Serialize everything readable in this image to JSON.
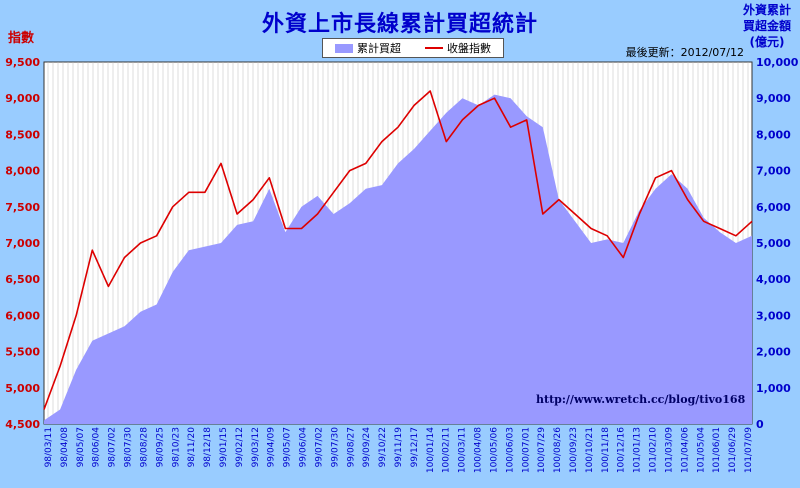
{
  "title": "外資上市長線累計買超統計",
  "left_axis_unit": "指數",
  "right_axis_unit_lines": [
    "外資累計",
    "買超金額",
    "(億元)"
  ],
  "updated_text": "最後更新：2012/07/12",
  "watermark_url": "http://www.wretch.cc/blog/tivo168",
  "colors": {
    "background": "#99CCFF",
    "plot_bg": "#FFFFFF",
    "area": "#9999FF",
    "line": "#DD0000",
    "left_axis": "#CC0000",
    "right_axis": "#0000CC"
  },
  "chart_data": {
    "type": "area+line",
    "legend": [
      "累計買超",
      "收盤指數"
    ],
    "yleft": {
      "label": "指數",
      "lim": [
        4500,
        9500
      ],
      "ticks": [
        "4,500",
        "5,000",
        "5,500",
        "6,000",
        "6,500",
        "7,000",
        "7,500",
        "8,000",
        "8,500",
        "9,000",
        "9,500"
      ]
    },
    "yright": {
      "label": "外資累計買超金額(億元)",
      "lim": [
        0,
        10000
      ],
      "ticks": [
        "0",
        "1,000",
        "2,000",
        "3,000",
        "4,000",
        "5,000",
        "6,000",
        "7,000",
        "8,000",
        "9,000",
        "10,000"
      ]
    },
    "x_tick_labels": [
      "98/03/11",
      "98/04/08",
      "98/05/07",
      "98/06/04",
      "98/07/02",
      "98/07/30",
      "98/08/28",
      "98/09/25",
      "98/10/23",
      "98/11/20",
      "98/12/18",
      "99/01/15",
      "99/02/12",
      "99/03/12",
      "99/04/09",
      "99/05/07",
      "99/06/04",
      "99/07/02",
      "99/07/30",
      "99/08/27",
      "99/09/24",
      "99/10/22",
      "99/11/19",
      "99/12/17",
      "100/01/14",
      "100/02/11",
      "100/03/11",
      "100/04/08",
      "100/05/06",
      "100/06/03",
      "100/07/01",
      "100/07/29",
      "100/08/26",
      "100/09/23",
      "100/10/21",
      "100/11/18",
      "100/12/16",
      "101/01/13",
      "101/02/10",
      "101/03/09",
      "101/04/06",
      "101/05/04",
      "101/06/01",
      "101/06/29",
      "101/07/09"
    ],
    "series": [
      {
        "name": "累計買超",
        "axis": "right",
        "values": [
          100,
          400,
          1500,
          2300,
          2500,
          2700,
          3100,
          3300,
          4200,
          4800,
          4900,
          5000,
          5500,
          5600,
          6500,
          5300,
          6000,
          6300,
          5800,
          6100,
          6500,
          6600,
          7200,
          7600,
          8100,
          8600,
          9000,
          8800,
          9100,
          9000,
          8500,
          8200,
          6200,
          5600,
          5000,
          5100,
          5000,
          5900,
          6500,
          6900,
          6500,
          5700,
          5300,
          5000,
          5200
        ]
      },
      {
        "name": "收盤指數",
        "axis": "left",
        "values": [
          4700,
          5300,
          6000,
          6900,
          6400,
          6800,
          7000,
          7100,
          7500,
          7700,
          7700,
          8100,
          7400,
          7600,
          7900,
          7200,
          7200,
          7400,
          7700,
          8000,
          8100,
          8400,
          8600,
          8900,
          9100,
          8400,
          8700,
          8900,
          9000,
          8600,
          8700,
          7400,
          7600,
          7400,
          7200,
          7100,
          6800,
          7400,
          7900,
          8000,
          7600,
          7300,
          7200,
          7100,
          7300
        ]
      }
    ],
    "grid": "vertical",
    "legend_position": "top-center"
  }
}
